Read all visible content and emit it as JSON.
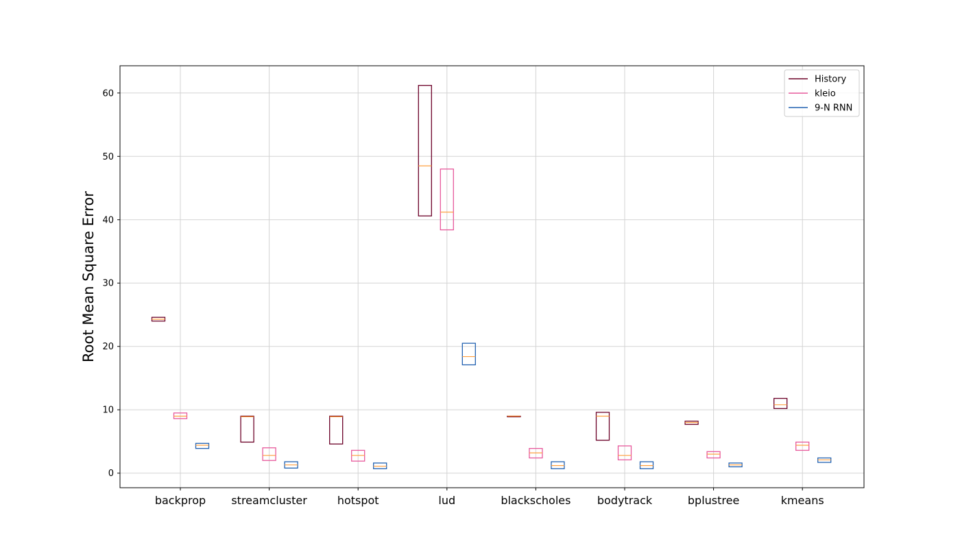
{
  "chart_data": {
    "type": "boxplot",
    "title": "",
    "xlabel": "",
    "ylabel": "Root Mean Square Error",
    "ylim": [
      -2.3,
      64.3
    ],
    "yticks": [
      0,
      10,
      20,
      30,
      40,
      50,
      60
    ],
    "grid": true,
    "legend_position": "top-right",
    "categories": [
      "backprop",
      "streamcluster",
      "hotspot",
      "lud",
      "blackscholes",
      "bodytrack",
      "bplustree",
      "kmeans"
    ],
    "median_color": "#ff9f3f",
    "series": [
      {
        "name": "History",
        "color": "#6b0027",
        "boxes": [
          {
            "q1": 24.0,
            "median": 24.3,
            "q3": 24.6
          },
          {
            "q1": 4.9,
            "median": 8.9,
            "q3": 9.0
          },
          {
            "q1": 4.6,
            "median": 8.9,
            "q3": 9.0
          },
          {
            "q1": 40.6,
            "median": 48.5,
            "q3": 61.2
          },
          {
            "q1": 8.9,
            "median": 9.0,
            "q3": 9.0
          },
          {
            "q1": 5.2,
            "median": 9.0,
            "q3": 9.6
          },
          {
            "q1": 7.7,
            "median": 8.0,
            "q3": 8.2
          },
          {
            "q1": 10.2,
            "median": 10.8,
            "q3": 11.8
          }
        ]
      },
      {
        "name": "kleio",
        "color": "#e7589b",
        "boxes": [
          {
            "q1": 8.6,
            "median": 9.0,
            "q3": 9.5
          },
          {
            "q1": 2.0,
            "median": 2.8,
            "q3": 4.0
          },
          {
            "q1": 1.9,
            "median": 2.8,
            "q3": 3.6
          },
          {
            "q1": 38.4,
            "median": 41.2,
            "q3": 48.0
          },
          {
            "q1": 2.4,
            "median": 3.2,
            "q3": 3.9
          },
          {
            "q1": 2.1,
            "median": 2.8,
            "q3": 4.3
          },
          {
            "q1": 2.4,
            "median": 3.0,
            "q3": 3.4
          },
          {
            "q1": 3.6,
            "median": 4.4,
            "q3": 4.9
          }
        ]
      },
      {
        "name": "9-N RNN",
        "color": "#2060b0",
        "boxes": [
          {
            "q1": 3.9,
            "median": 4.4,
            "q3": 4.7
          },
          {
            "q1": 0.8,
            "median": 1.3,
            "q3": 1.8
          },
          {
            "q1": 0.7,
            "median": 1.1,
            "q3": 1.6
          },
          {
            "q1": 17.1,
            "median": 18.4,
            "q3": 20.5
          },
          {
            "q1": 0.7,
            "median": 1.2,
            "q3": 1.8
          },
          {
            "q1": 0.7,
            "median": 1.2,
            "q3": 1.8
          },
          {
            "q1": 1.0,
            "median": 1.3,
            "q3": 1.6
          },
          {
            "q1": 1.7,
            "median": 2.1,
            "q3": 2.4
          }
        ]
      }
    ]
  }
}
